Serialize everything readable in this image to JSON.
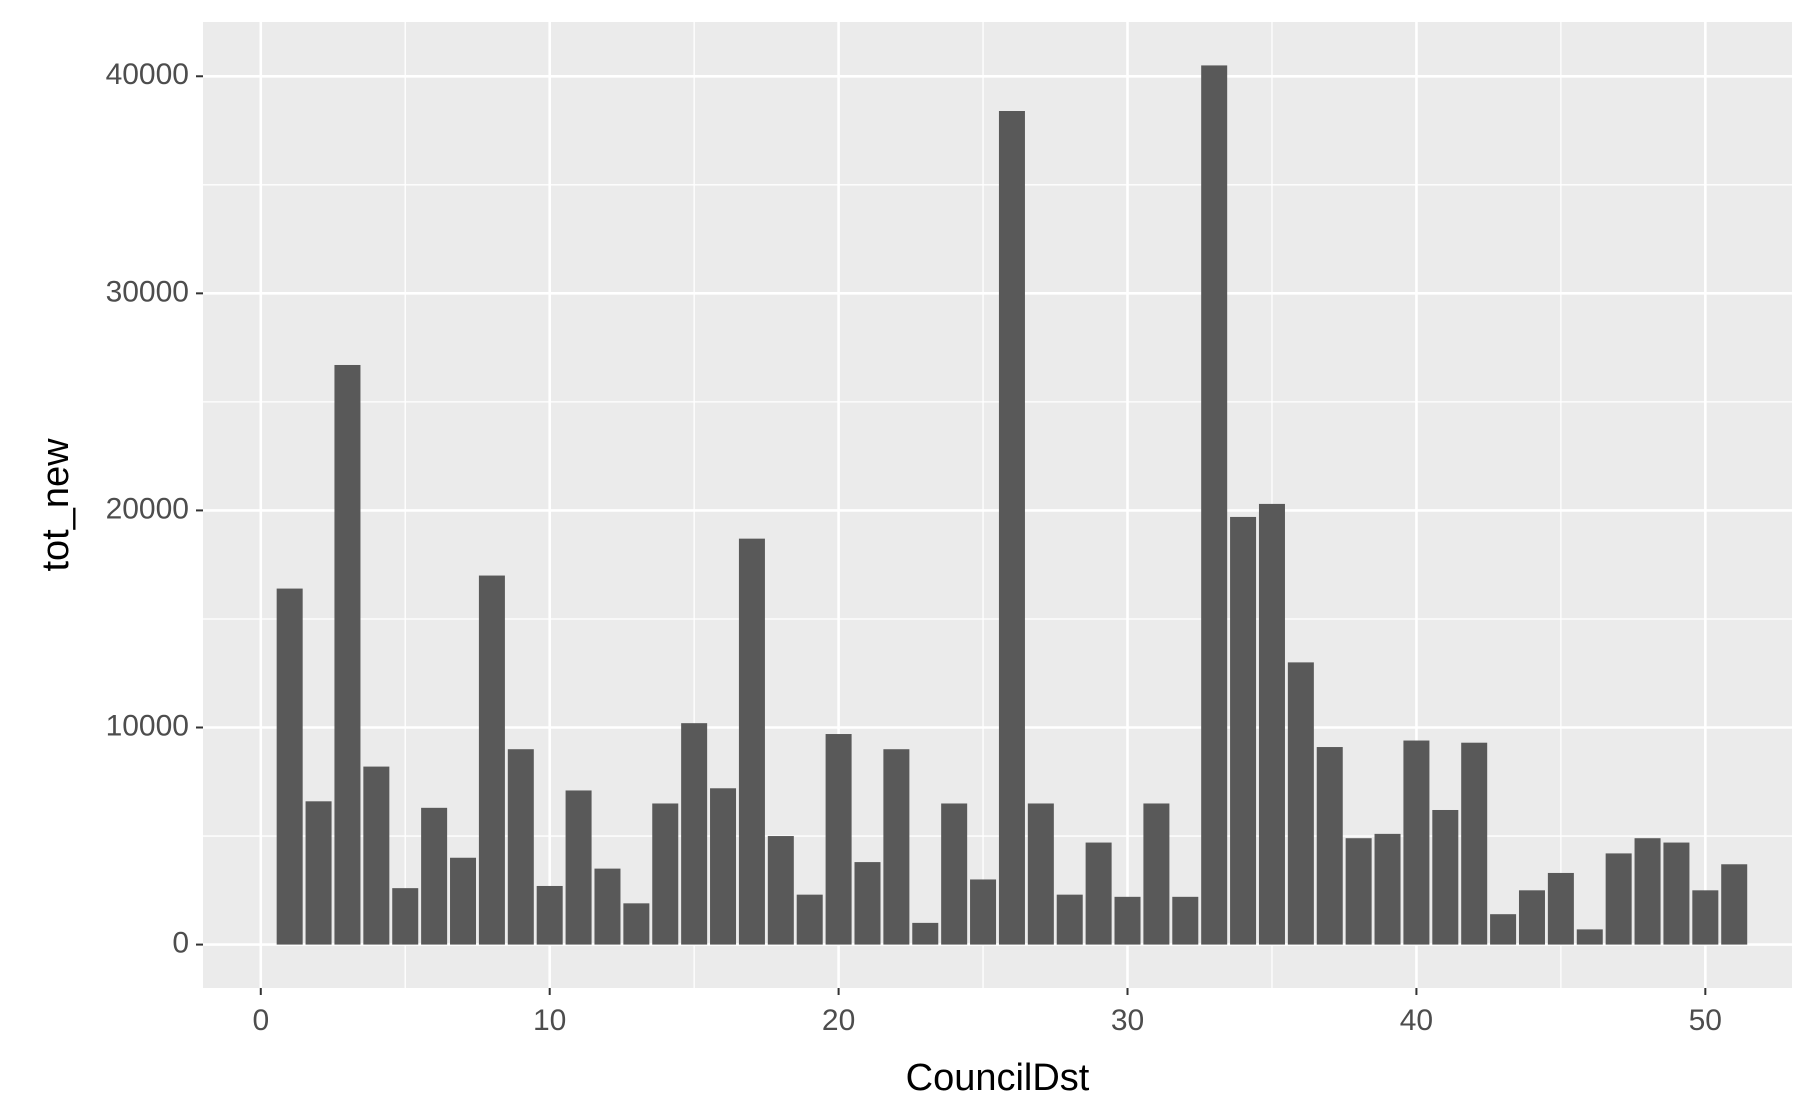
{
  "chart_data": {
    "type": "bar",
    "xlabel": "CouncilDst",
    "ylabel": "tot_new",
    "xlim": [
      -2,
      53
    ],
    "ylim": [
      -2000,
      42500
    ],
    "x_ticks": [
      0,
      10,
      20,
      30,
      40,
      50
    ],
    "y_ticks": [
      0,
      10000,
      20000,
      30000,
      40000
    ],
    "x_tick_labels": [
      "0",
      "10",
      "20",
      "30",
      "40",
      "50"
    ],
    "y_tick_labels": [
      "0",
      "10000",
      "20000",
      "30000",
      "40000"
    ],
    "grid": true,
    "colors": {
      "panel": "#ebebeb",
      "grid_major": "#ffffff",
      "bar": "#595959",
      "tick_label": "#4d4d4d",
      "tick_mark": "#333333"
    },
    "x": [
      1,
      2,
      3,
      4,
      5,
      6,
      7,
      8,
      9,
      10,
      11,
      12,
      13,
      14,
      15,
      16,
      17,
      18,
      19,
      20,
      21,
      22,
      23,
      24,
      25,
      26,
      27,
      28,
      29,
      30,
      31,
      32,
      33,
      34,
      35,
      36,
      37,
      38,
      39,
      40,
      41,
      42,
      43,
      44,
      45,
      46,
      47,
      48,
      49,
      50,
      51
    ],
    "values": [
      16400,
      6600,
      26700,
      8200,
      2600,
      6300,
      4000,
      17000,
      9000,
      2700,
      7100,
      3500,
      1900,
      6500,
      10200,
      7200,
      18700,
      5000,
      2300,
      9700,
      3800,
      9000,
      1000,
      6500,
      3000,
      38400,
      6500,
      2300,
      4700,
      2200,
      6500,
      2200,
      40500,
      19700,
      20300,
      13000,
      9100,
      4900,
      5100,
      9400,
      6200,
      9300,
      1400,
      2500,
      3300,
      700,
      4200,
      4900,
      4700,
      2500,
      3700
    ]
  }
}
